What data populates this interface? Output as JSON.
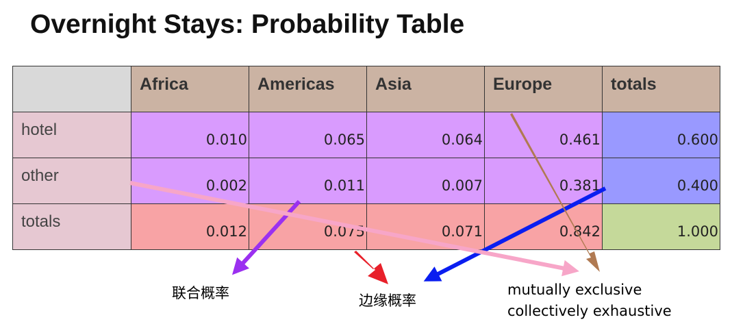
{
  "title": "Overnight Stays: Probability Table",
  "table": {
    "columns": [
      "Africa",
      "Americas",
      "Asia",
      "Europe",
      "totals"
    ],
    "rows": [
      {
        "label": "hotel",
        "values": [
          "0.010",
          "0.065",
          "0.064",
          "0.461"
        ],
        "total": "0.600"
      },
      {
        "label": "other",
        "values": [
          "0.002",
          "0.011",
          "0.007",
          "0.381"
        ],
        "total": "0.400"
      },
      {
        "label": "totals",
        "values": [
          "0.012",
          "0.075",
          "0.071",
          "0.842"
        ],
        "total": "1.000"
      }
    ]
  },
  "annotations": {
    "joint": "联合概率",
    "marginal": "边缘概率",
    "exclusive_line1": "mutually exclusive",
    "exclusive_line2": "collectively exhaustive"
  },
  "colors": {
    "header": "#cbb3a3",
    "row_label": "#e6c8d2",
    "joint": "#d99bfe",
    "marginal_column": "#9999ff",
    "marginal_row": "#f8a3a5",
    "grand_total": "#c5d99a",
    "arrow_joint": "#9b30f0",
    "arrow_marginal_red": "#e8202a",
    "arrow_marginal_blue": "#0a1ef0",
    "arrow_pink": "#f7a6c8",
    "arrow_brown": "#b07a52"
  }
}
